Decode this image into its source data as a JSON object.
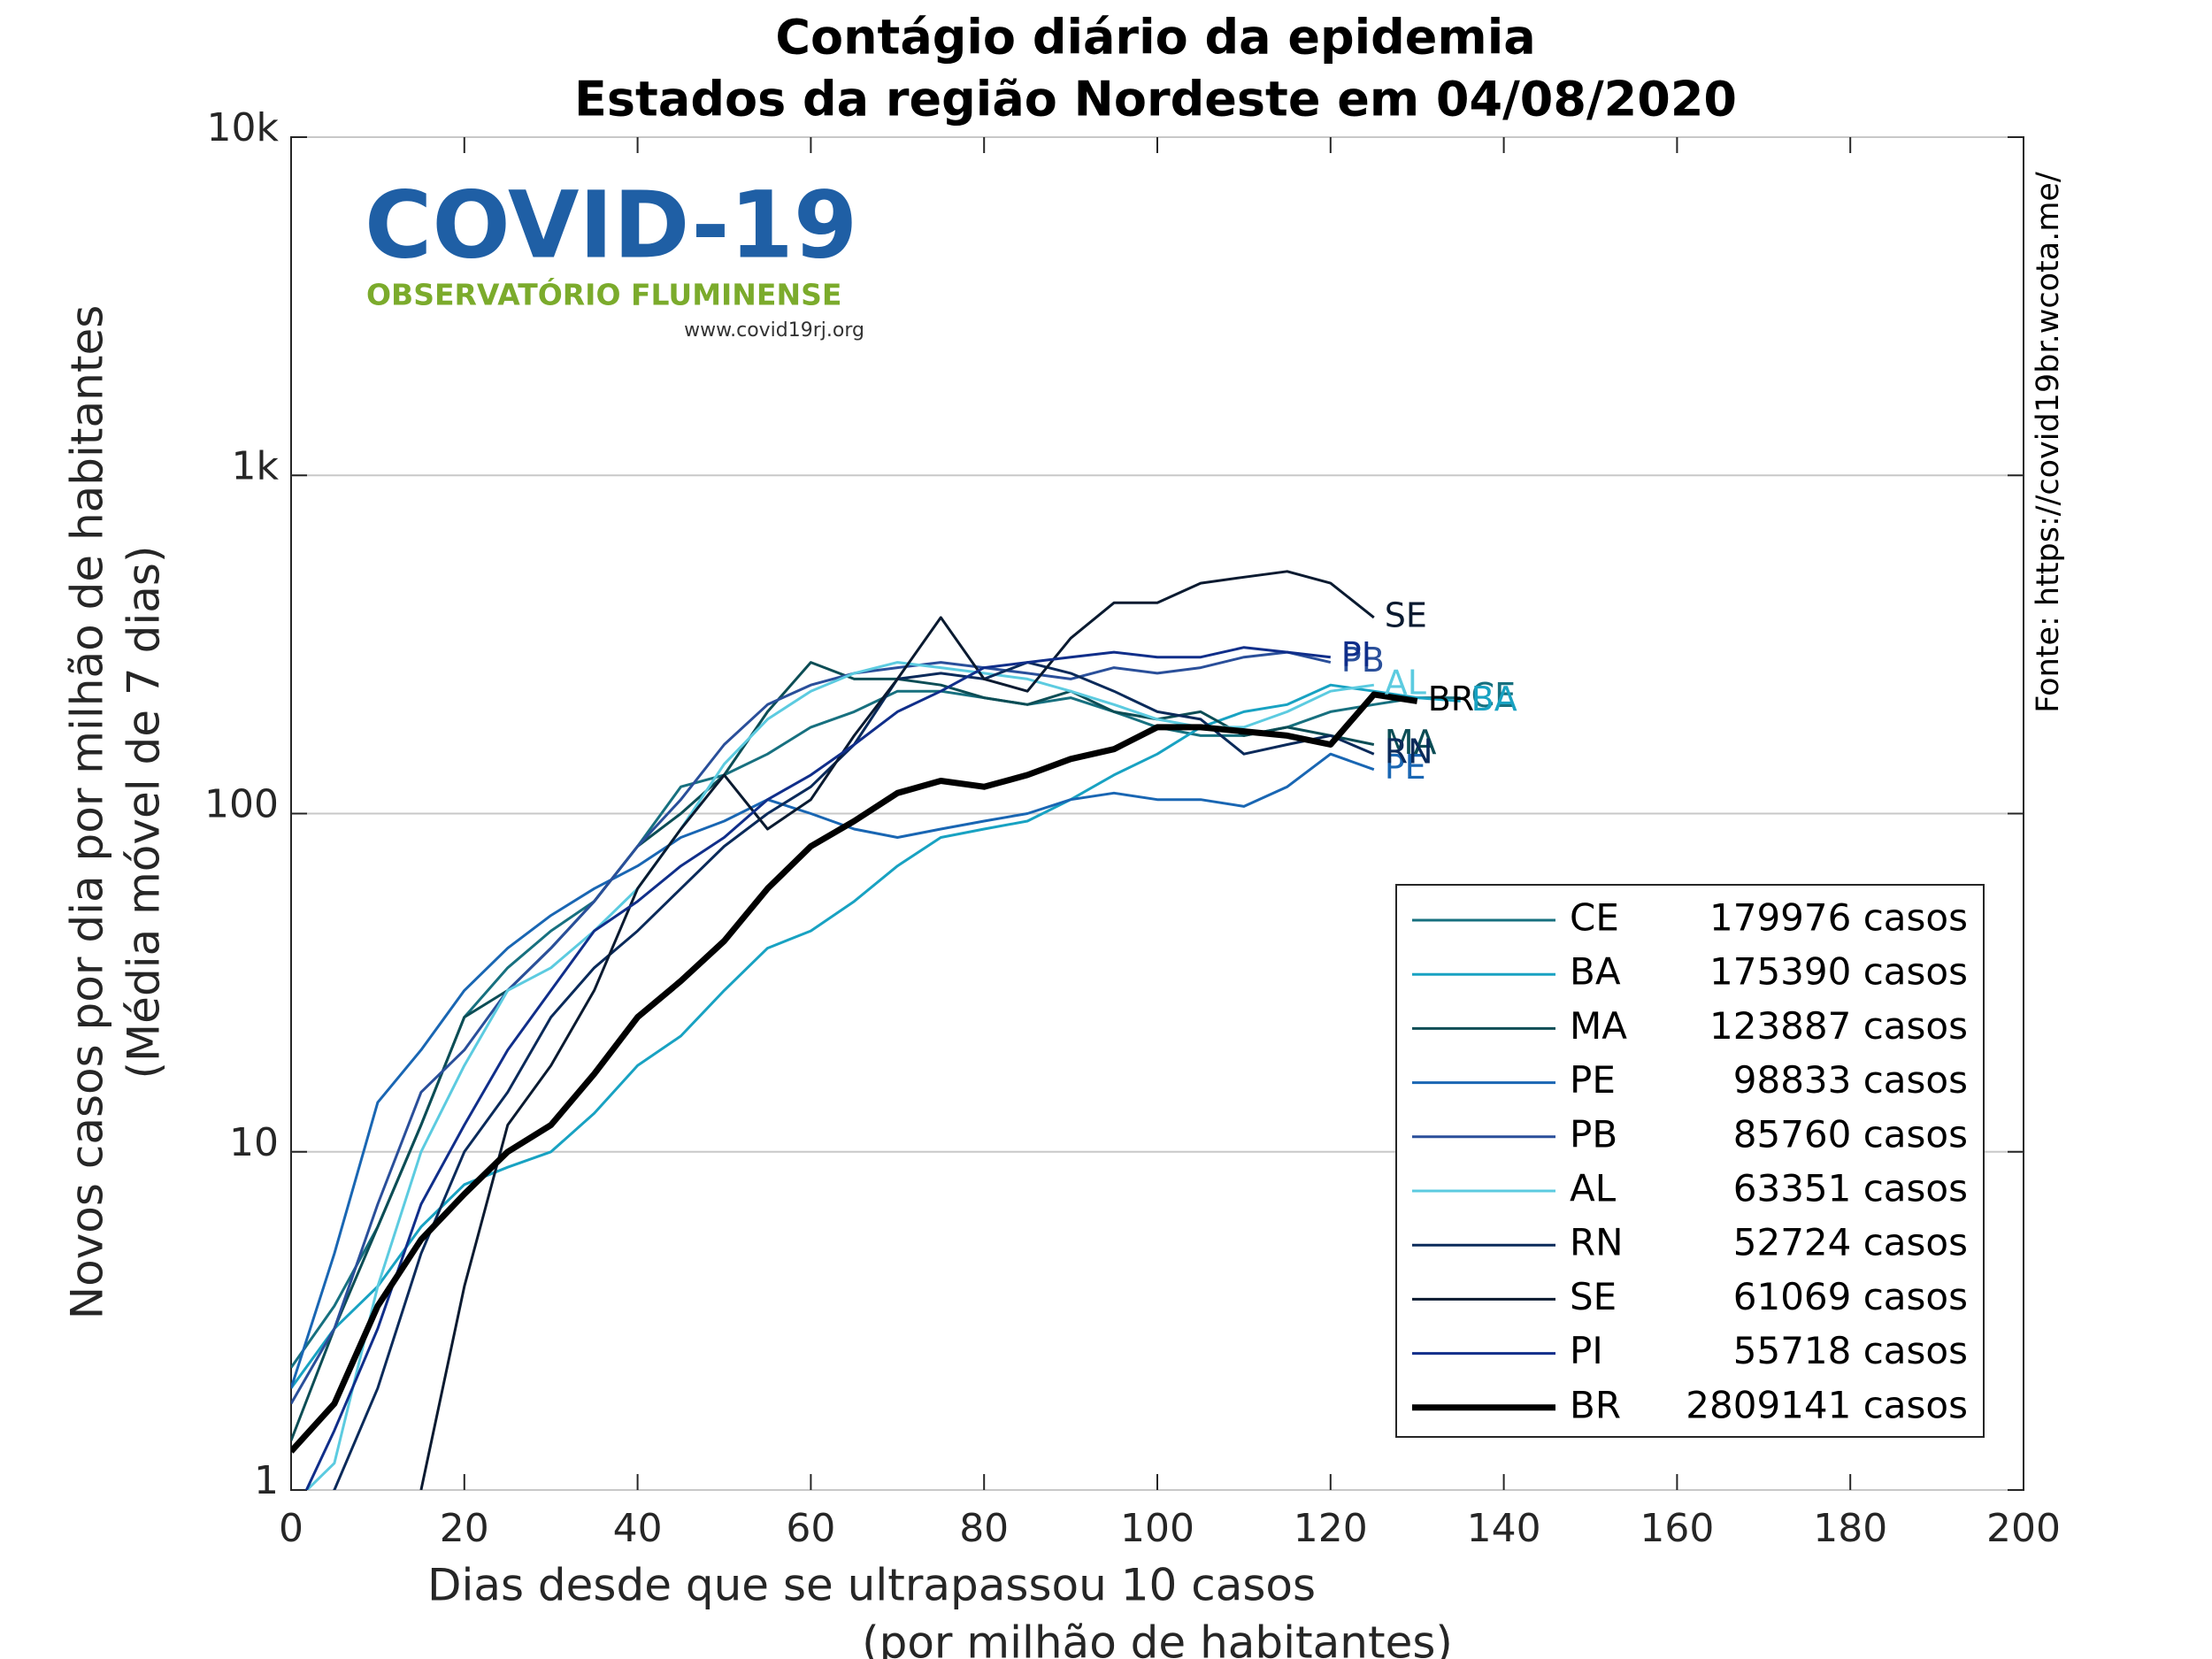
{
  "chart_data": {
    "type": "line",
    "title": [
      "Contágio diário da epidemia",
      "Estados da região Nordeste em 04/08/2020"
    ],
    "xlabel": [
      "Dias desde que se ultrapassou 10 casos",
      "(por milhão de habitantes)"
    ],
    "ylabel": [
      "Novos casos por dia por milhão de habitantes",
      "(Média móvel de 7 dias)"
    ],
    "source": "Fonte: https://covid19br.wcota.me/",
    "logo": {
      "title": "COVID-19",
      "subtitle": "OBSERVATÓRIO FLUMINENSE",
      "url": "www.covid19rj.org"
    },
    "xlim": [
      0,
      200
    ],
    "xticks": [
      0,
      20,
      40,
      60,
      80,
      100,
      120,
      140,
      160,
      180,
      200
    ],
    "ylim": [
      1,
      10000
    ],
    "yscale": "log",
    "yticks": [
      1,
      10,
      100,
      {
        "value": 1000,
        "label": "1k"
      },
      {
        "value": 10000,
        "label": "10k"
      }
    ],
    "grid": "y",
    "legend": "lower right",
    "x": [
      0,
      5,
      10,
      15,
      20,
      25,
      30,
      35,
      40,
      45,
      50,
      55,
      60,
      65,
      70,
      75,
      80,
      85,
      90,
      95,
      100,
      105,
      110,
      115,
      120,
      125,
      130,
      135
    ],
    "series": [
      {
        "name": "CE",
        "cases_label": "179976 casos",
        "color": "#17707f",
        "width": 3,
        "values": [
          2.3,
          3.5,
          6,
          12,
          25,
          35,
          45,
          55,
          80,
          120,
          130,
          150,
          180,
          200,
          230,
          230,
          220,
          210,
          220,
          200,
          180,
          170,
          170,
          180,
          200,
          210,
          220,
          220
        ]
      },
      {
        "name": "BA",
        "cases_label": "175390 casos",
        "color": "#18a2c2",
        "width": 3,
        "values": [
          2,
          3,
          4,
          6,
          8,
          9,
          10,
          13,
          18,
          22,
          30,
          40,
          45,
          55,
          70,
          85,
          90,
          95,
          110,
          130,
          150,
          180,
          200,
          210,
          240,
          230,
          220,
          215
        ]
      },
      {
        "name": "MA",
        "cases_label": "123887 casos",
        "color": "#0c4d55",
        "width": 3,
        "values": [
          1.4,
          3,
          6,
          12,
          25,
          30,
          40,
          55,
          80,
          100,
          130,
          200,
          280,
          250,
          250,
          240,
          220,
          210,
          230,
          200,
          190,
          200,
          170,
          180,
          170,
          160,
          null,
          null
        ]
      },
      {
        "name": "PE",
        "cases_label": "98833 casos",
        "color": "#1966b3",
        "width": 3,
        "values": [
          2,
          5,
          14,
          20,
          30,
          40,
          50,
          60,
          70,
          85,
          95,
          110,
          100,
          90,
          85,
          90,
          95,
          100,
          110,
          115,
          110,
          110,
          105,
          120,
          150,
          135,
          null,
          null
        ]
      },
      {
        "name": "PB",
        "cases_label": "85760 casos",
        "color": "#2a4f9a",
        "width": 3,
        "values": [
          1.8,
          3,
          7,
          15,
          20,
          30,
          40,
          55,
          80,
          110,
          160,
          210,
          240,
          260,
          270,
          280,
          270,
          260,
          250,
          270,
          260,
          270,
          290,
          300,
          280,
          null,
          null,
          null
        ]
      },
      {
        "name": "AL",
        "cases_label": "63351 casos",
        "color": "#5ccbe0",
        "width": 3,
        "values": [
          0.9,
          1.2,
          4,
          10,
          18,
          30,
          35,
          45,
          60,
          90,
          140,
          190,
          230,
          260,
          280,
          270,
          260,
          250,
          230,
          210,
          190,
          180,
          180,
          200,
          230,
          240,
          null,
          null
        ]
      },
      {
        "name": "RN",
        "cases_label": "52724 casos",
        "color": "#0a2a5a",
        "width": 3,
        "values": [
          0.7,
          1,
          2,
          5,
          10,
          15,
          25,
          35,
          45,
          60,
          80,
          100,
          120,
          160,
          250,
          260,
          250,
          280,
          260,
          230,
          200,
          190,
          150,
          160,
          170,
          150,
          null,
          null
        ]
      },
      {
        "name": "SE",
        "cases_label": "61069 casos",
        "color": "#0a1a30",
        "width": 3,
        "values": [
          null,
          null,
          null,
          1,
          4,
          12,
          18,
          30,
          60,
          90,
          130,
          90,
          110,
          170,
          250,
          380,
          250,
          230,
          330,
          420,
          420,
          480,
          500,
          520,
          480,
          380,
          null,
          null
        ]
      },
      {
        "name": "PI",
        "cases_label": "55718 casos",
        "color": "#102e8a",
        "width": 3,
        "values": [
          0.8,
          1.5,
          3,
          7,
          12,
          20,
          30,
          45,
          55,
          70,
          85,
          110,
          130,
          160,
          200,
          230,
          270,
          280,
          290,
          300,
          290,
          290,
          310,
          300,
          290,
          null,
          null,
          null
        ]
      },
      {
        "name": "BR",
        "cases_label": "2809141 casos",
        "color": "#000000",
        "width": 7,
        "values": [
          1.3,
          1.8,
          3.5,
          5.5,
          7.5,
          10,
          12,
          17,
          25,
          32,
          42,
          60,
          80,
          95,
          115,
          125,
          120,
          130,
          145,
          155,
          180,
          180,
          175,
          170,
          160,
          225,
          215,
          null
        ]
      }
    ]
  }
}
